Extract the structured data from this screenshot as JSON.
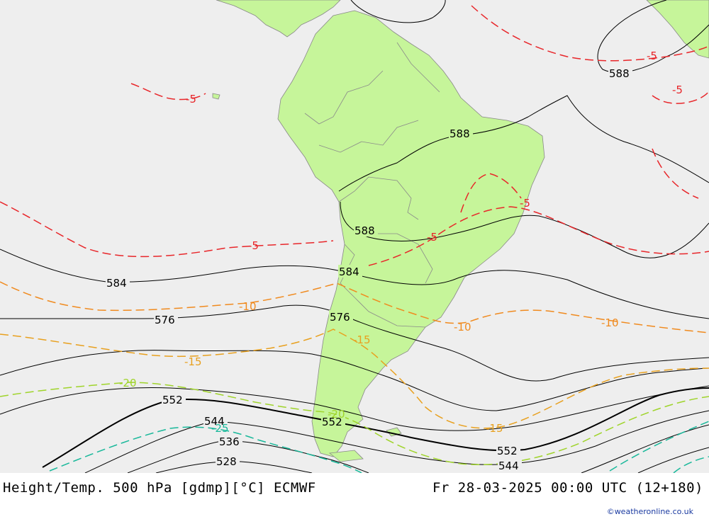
{
  "footer": {
    "title": "Height/Temp. 500 hPa [gdmp][°C] ECMWF",
    "valid_time": "Fr 28-03-2025 00:00 UTC (12+180)",
    "credit": "©weatheronline.co.uk"
  },
  "colors": {
    "ocean": "#eeeeee",
    "land": "#c6f59a",
    "height_contour": "#000000",
    "temp_minus5": "#e8262a",
    "temp_minus10": "#f08a1e",
    "temp_minus15": "#e8a01e",
    "temp_minus20": "#9fd42a",
    "temp_minus25": "#18b89a"
  },
  "height_labels": [
    {
      "text": "588",
      "name": "height-label-588-ne"
    },
    {
      "text": "588",
      "name": "height-label-588-brazil"
    },
    {
      "text": "588",
      "name": "height-label-588-chile"
    },
    {
      "text": "584",
      "name": "height-label-584-pacific"
    },
    {
      "text": "584",
      "name": "height-label-584-andes"
    },
    {
      "text": "576",
      "name": "height-label-576-pacific"
    },
    {
      "text": "576",
      "name": "height-label-576-andes"
    },
    {
      "text": "552",
      "name": "height-label-552-pacific"
    },
    {
      "text": "552",
      "name": "height-label-552-patagonia"
    },
    {
      "text": "552",
      "name": "height-label-552-atlantic"
    },
    {
      "text": "544",
      "name": "height-label-544-pacific"
    },
    {
      "text": "544",
      "name": "height-label-544-atlantic"
    },
    {
      "text": "536",
      "name": "height-label-536"
    },
    {
      "text": "528",
      "name": "height-label-528"
    }
  ],
  "temp_labels": [
    {
      "text": "-5",
      "name": "temp-label-m5-pacific-north"
    },
    {
      "text": "-5",
      "name": "temp-label-m5-atlantic-north"
    },
    {
      "text": "-5",
      "name": "temp-label-m5-atlantic-east"
    },
    {
      "text": "-5",
      "name": "temp-label-m5-brazil"
    },
    {
      "text": "-5",
      "name": "temp-label-m5-bolivia"
    },
    {
      "text": "-5",
      "name": "temp-label-m5-pacific"
    },
    {
      "text": "-10",
      "name": "temp-label-m10-pacific"
    },
    {
      "text": "-10",
      "name": "temp-label-m10-argentina"
    },
    {
      "text": "-10",
      "name": "temp-label-m10-atlantic"
    },
    {
      "text": "-15",
      "name": "temp-label-m15-pacific"
    },
    {
      "text": "-15",
      "name": "temp-label-m15-argentina"
    },
    {
      "text": "-15",
      "name": "temp-label-m15-atlantic"
    },
    {
      "text": "-20",
      "name": "temp-label-m20-pacific"
    },
    {
      "text": "-20",
      "name": "temp-label-m20-patagonia"
    },
    {
      "text": "-25",
      "name": "temp-label-m25-pacific"
    }
  ]
}
